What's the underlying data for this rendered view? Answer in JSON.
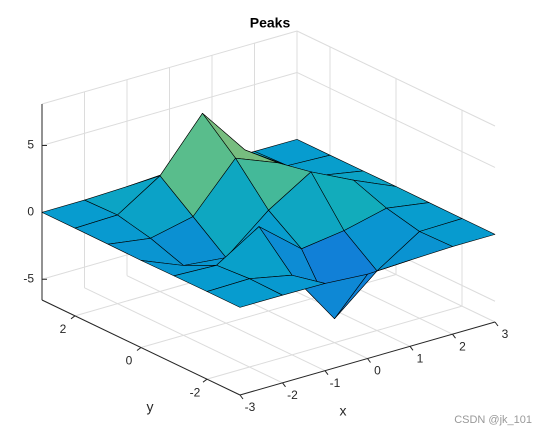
{
  "chart_data": {
    "type": "surface",
    "title": "Peaks",
    "xlabel": "x",
    "ylabel": "y",
    "x": [
      -3,
      -2,
      -1,
      0,
      1,
      2,
      3
    ],
    "y": [
      -3,
      -2,
      -1,
      0,
      1,
      2,
      3
    ],
    "z": [
      [
        0,
        0,
        -0.03,
        -0.25,
        -0.11,
        0,
        0
      ],
      [
        0,
        0.05,
        -0.6,
        -4.76,
        -2.1,
        -0.06,
        0
      ],
      [
        -0.01,
        -0.13,
        1.85,
        -0.72,
        -0.27,
        0.5,
        0.01
      ],
      [
        -0.04,
        -1.33,
        -1.65,
        0.98,
        2.94,
        1.41,
        0.03
      ],
      [
        -0.01,
        -0.48,
        0.23,
        3.69,
        2.43,
        0.58,
        0.01
      ],
      [
        0,
        0.08,
        2.1,
        5.86,
        2.21,
        0.13,
        0
      ],
      [
        0,
        0.01,
        0.11,
        0.3,
        0.11,
        0.01,
        0
      ]
    ],
    "xlim": [
      -3,
      3
    ],
    "ylim": [
      -3,
      3
    ],
    "zlim": [
      -6.55,
      8.1
    ],
    "xticks": [
      -3,
      -2,
      -1,
      0,
      1,
      2,
      3
    ],
    "yticks": [
      -2,
      0,
      2
    ],
    "zticks": [
      -5,
      0,
      5
    ],
    "grid": true,
    "colormap": "parula",
    "edge_color": "#000000",
    "watermark": "CSDN @jk_101"
  }
}
